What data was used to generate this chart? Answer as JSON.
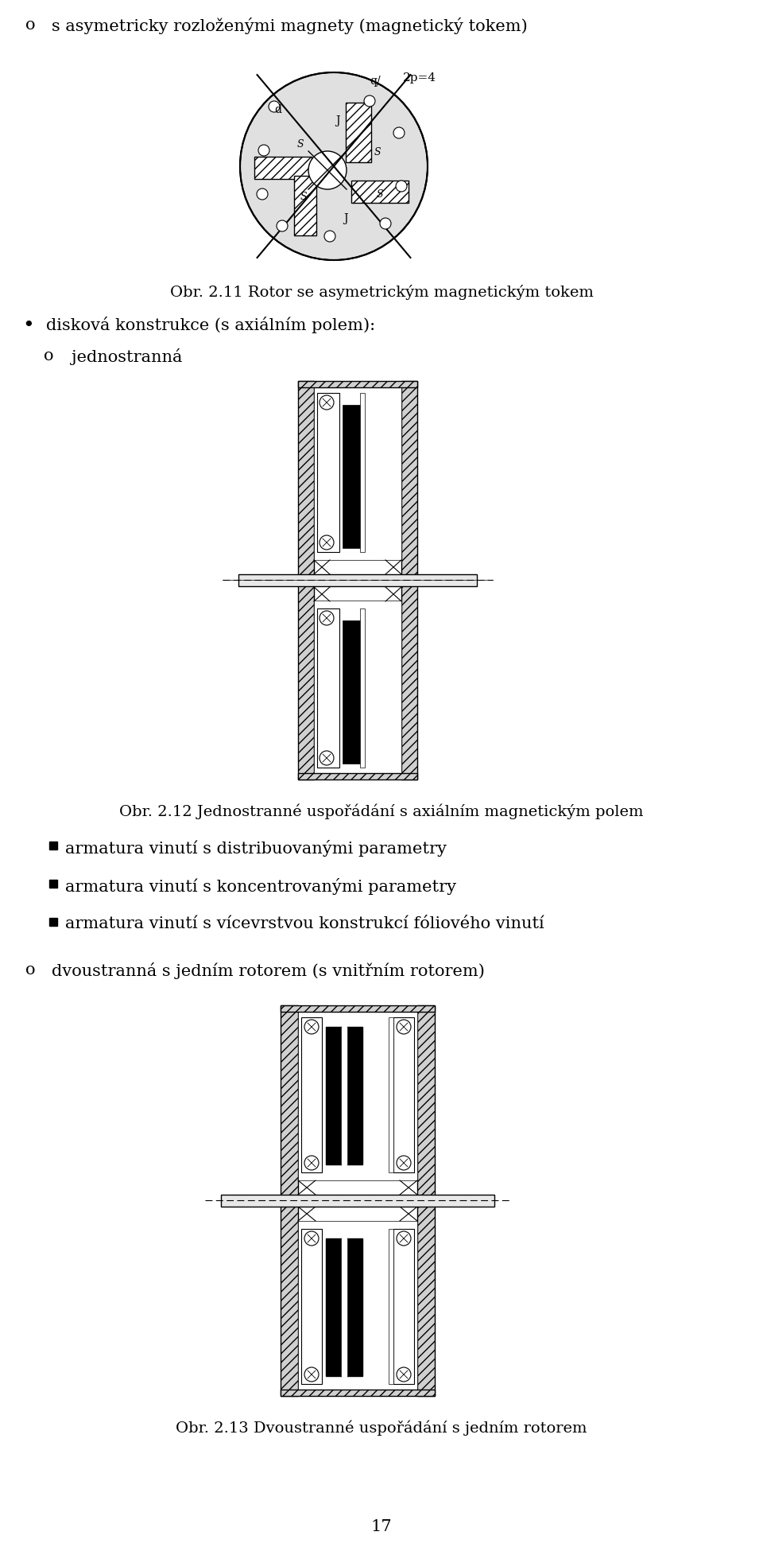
{
  "bg_color": "#ffffff",
  "text_color": "#000000",
  "line1": "s asymetricky rozloženými magnety (magnetický tokem)",
  "bullet1": "disková konstrukce (s axiálním polem):",
  "sub1": "jednostranná",
  "caption1": "Obr. 2.11 Rotor se asymetrickým magnetickým tokem",
  "caption2": "Obr. 2.12 Jednostranné uspořádání s axiálním magnetickým polem",
  "bullet2a": "armatura vinutí s distribuovanými parametry",
  "bullet2b": "armatura vinutí s koncentrovanými parametry",
  "bullet2c": "armatura vinutí s vícevrstvou konstrukcí fóliového vinutí",
  "sub2": "dvoustranná s jedním rotorem (s vnitřním rotorem)",
  "caption3": "Obr. 2.13 Dvoustranné uspořádání s jedním rotorem",
  "page_num": "17",
  "font_size_main": 15,
  "font_size_caption": 14,
  "font_size_small": 11
}
